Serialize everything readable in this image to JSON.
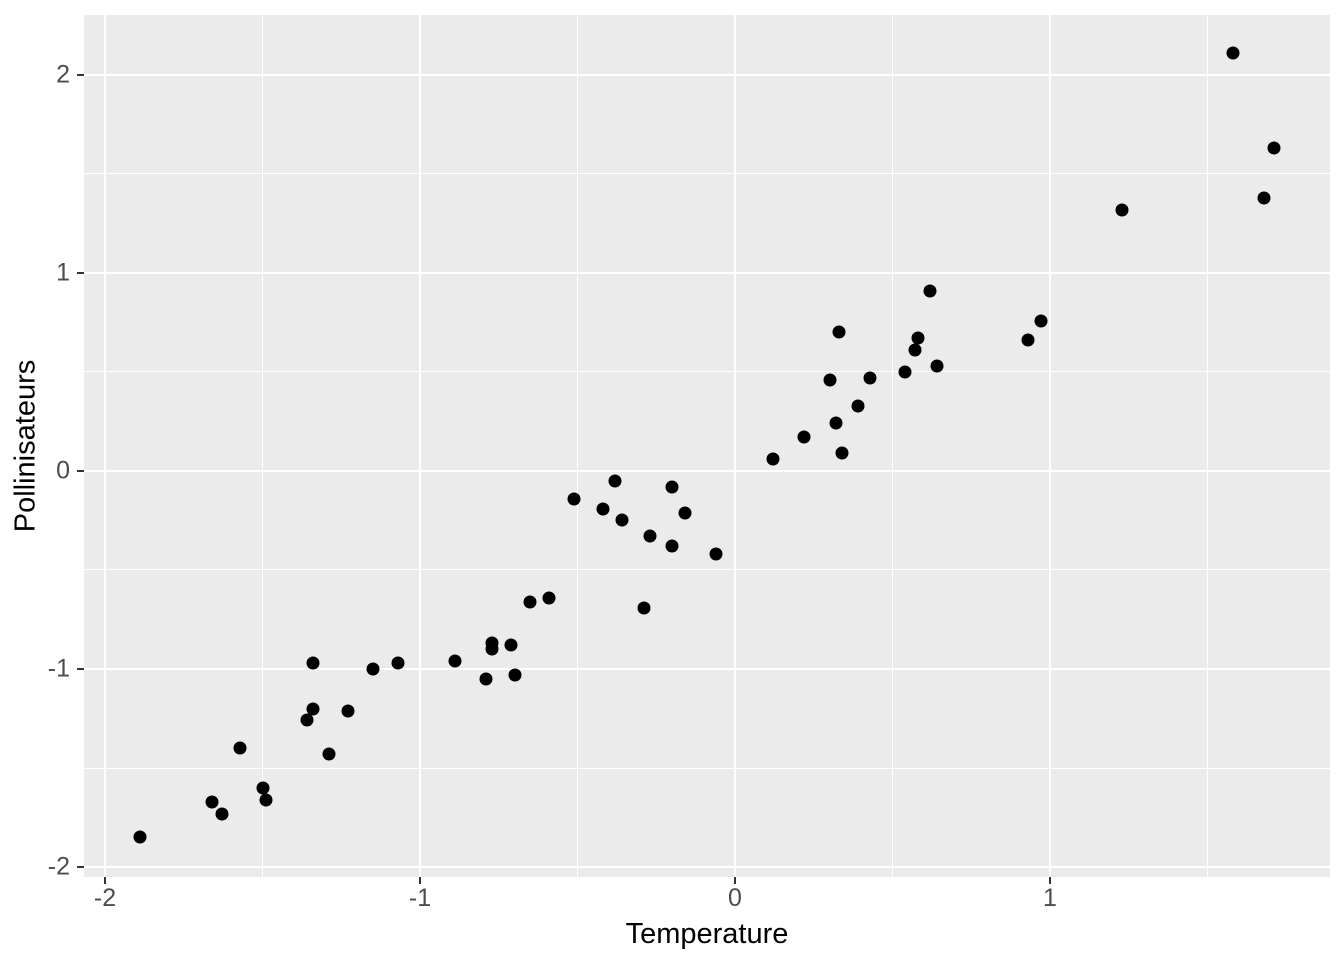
{
  "figure": {
    "background": "#FFFFFF",
    "panel_background": "#EBEBEB",
    "grid_color": "#FFFFFF",
    "tick_color": "#333333",
    "tick_label_color": "#4D4D4D",
    "axis_title_color": "#000000",
    "point_color": "#000000"
  },
  "chart_data": {
    "type": "scatter",
    "title": "",
    "xlabel": "Temperature",
    "ylabel": "Pollinisateurs",
    "xlim": [
      -2.0667,
      1.8889
    ],
    "ylim": [
      -2.0505,
      2.303
    ],
    "grid": "major-and-minor",
    "legend": "none",
    "x_ticks": [
      {
        "value": -2,
        "label": "-2"
      },
      {
        "value": -1,
        "label": "-1"
      },
      {
        "value": 0,
        "label": "0"
      },
      {
        "value": 1,
        "label": "1"
      }
    ],
    "y_ticks": [
      {
        "value": -2,
        "label": "-2"
      },
      {
        "value": -1,
        "label": "-1"
      },
      {
        "value": 0,
        "label": "0"
      },
      {
        "value": 1,
        "label": "1"
      },
      {
        "value": 2,
        "label": "2"
      }
    ],
    "x_minor_ticks": [
      -1.5,
      -0.5,
      0.5,
      1.5
    ],
    "y_minor_ticks": [
      -1.5,
      -0.5,
      0.5,
      1.5
    ],
    "points": [
      [
        -1.89,
        -1.85
      ],
      [
        -1.66,
        -1.67
      ],
      [
        -1.63,
        -1.73
      ],
      [
        -1.57,
        -1.4
      ],
      [
        -1.5,
        -1.6
      ],
      [
        -1.49,
        -1.66
      ],
      [
        -1.36,
        -1.26
      ],
      [
        -1.34,
        -1.2
      ],
      [
        -1.34,
        -0.97
      ],
      [
        -1.29,
        -1.43
      ],
      [
        -1.23,
        -1.21
      ],
      [
        -1.15,
        -1.0
      ],
      [
        -1.07,
        -0.97
      ],
      [
        -0.89,
        -0.96
      ],
      [
        -0.79,
        -1.05
      ],
      [
        -0.77,
        -0.87
      ],
      [
        -0.77,
        -0.9
      ],
      [
        -0.71,
        -0.88
      ],
      [
        -0.7,
        -1.03
      ],
      [
        -0.65,
        -0.66
      ],
      [
        -0.59,
        -0.64
      ],
      [
        -0.51,
        -0.14
      ],
      [
        -0.42,
        -0.19
      ],
      [
        -0.38,
        -0.05
      ],
      [
        -0.36,
        -0.25
      ],
      [
        -0.29,
        -0.69
      ],
      [
        -0.27,
        -0.33
      ],
      [
        -0.2,
        -0.38
      ],
      [
        -0.2,
        -0.08
      ],
      [
        -0.16,
        -0.21
      ],
      [
        -0.06,
        -0.42
      ],
      [
        0.12,
        0.06
      ],
      [
        0.22,
        0.17
      ],
      [
        0.3,
        0.46
      ],
      [
        0.32,
        0.24
      ],
      [
        0.33,
        0.7
      ],
      [
        0.34,
        0.09
      ],
      [
        0.39,
        0.33
      ],
      [
        0.43,
        0.47
      ],
      [
        0.54,
        0.5
      ],
      [
        0.57,
        0.61
      ],
      [
        0.58,
        0.67
      ],
      [
        0.62,
        0.91
      ],
      [
        0.64,
        0.53
      ],
      [
        0.93,
        0.66
      ],
      [
        0.97,
        0.76
      ],
      [
        1.23,
        1.32
      ],
      [
        1.58,
        2.11
      ],
      [
        1.68,
        1.38
      ],
      [
        1.71,
        1.63
      ]
    ]
  }
}
